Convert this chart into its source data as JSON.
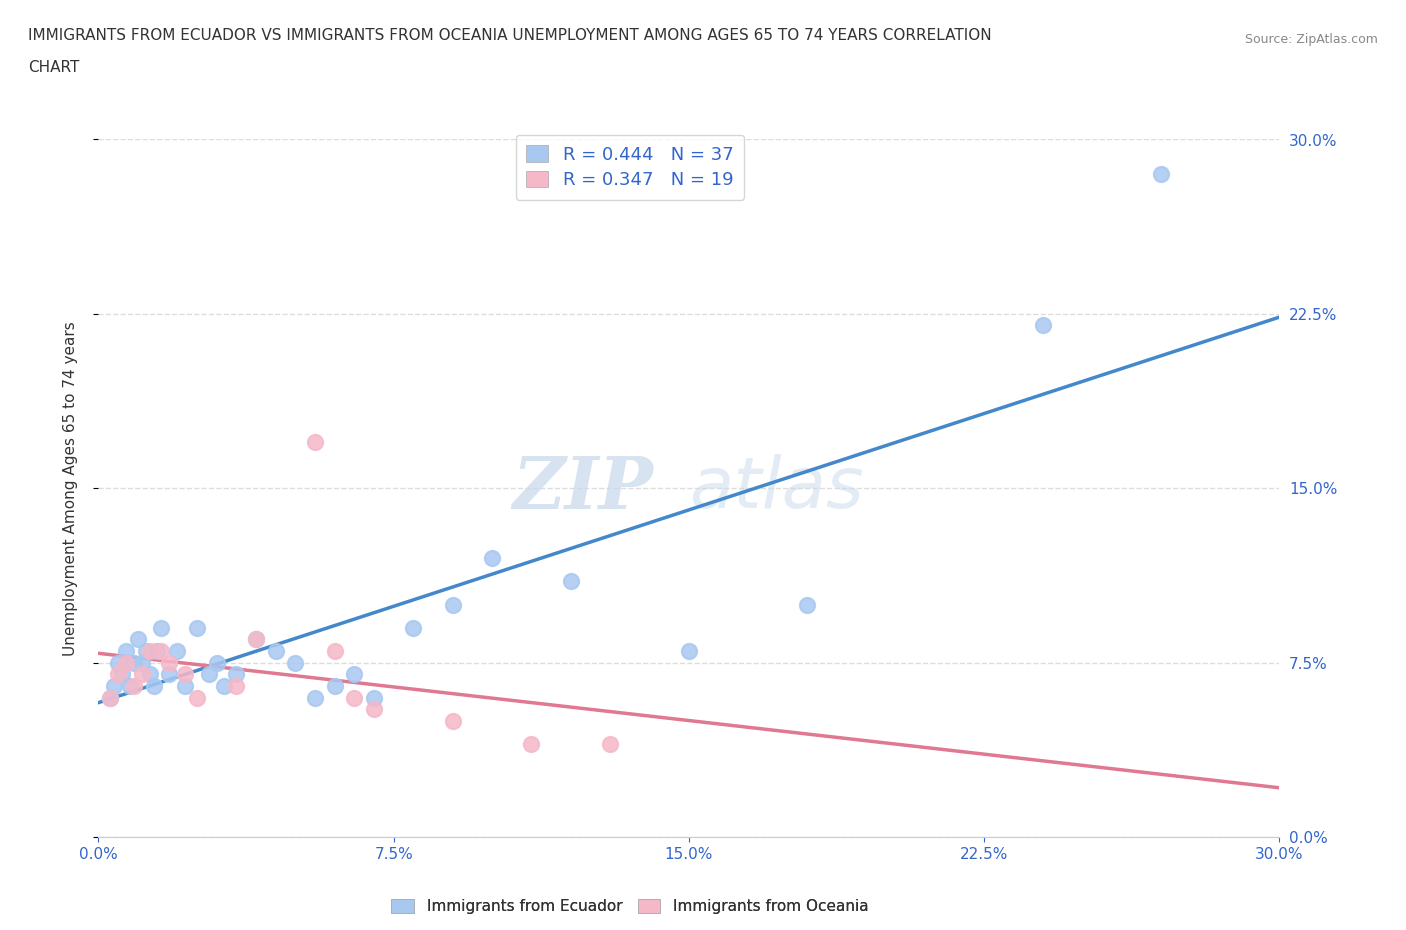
{
  "title_line1": "IMMIGRANTS FROM ECUADOR VS IMMIGRANTS FROM OCEANIA UNEMPLOYMENT AMONG AGES 65 TO 74 YEARS CORRELATION",
  "title_line2": "CHART",
  "source": "Source: ZipAtlas.com",
  "ylabel": "Unemployment Among Ages 65 to 74 years",
  "xlim": [
    0.0,
    0.3
  ],
  "ylim": [
    0.0,
    0.3
  ],
  "tick_vals": [
    0.0,
    0.075,
    0.15,
    0.225,
    0.3
  ],
  "tick_labels": [
    "0.0%",
    "7.5%",
    "15.0%",
    "22.5%",
    "30.0%"
  ],
  "blue_fill": "#a8c8f0",
  "pink_fill": "#f5b8c8",
  "blue_line": "#4488cc",
  "pink_line": "#e07890",
  "dashed_line": "#e0a0b0",
  "axis_label_color": "#3366cc",
  "text_color": "#333333",
  "grid_color": "#dddddd",
  "R_blue": 0.444,
  "N_blue": 37,
  "R_pink": 0.347,
  "N_pink": 19,
  "legend_label_blue": "Immigrants from Ecuador",
  "legend_label_pink": "Immigrants from Oceania",
  "watermark_zip": "ZIP",
  "watermark_atlas": "atlas",
  "blue_scatter_x": [
    0.003,
    0.004,
    0.005,
    0.006,
    0.007,
    0.008,
    0.009,
    0.01,
    0.011,
    0.012,
    0.013,
    0.014,
    0.015,
    0.016,
    0.018,
    0.02,
    0.022,
    0.025,
    0.028,
    0.03,
    0.032,
    0.035,
    0.04,
    0.045,
    0.05,
    0.055,
    0.06,
    0.065,
    0.07,
    0.08,
    0.09,
    0.1,
    0.12,
    0.15,
    0.18,
    0.24,
    0.27
  ],
  "blue_scatter_y": [
    0.06,
    0.065,
    0.075,
    0.07,
    0.08,
    0.065,
    0.075,
    0.085,
    0.075,
    0.08,
    0.07,
    0.065,
    0.08,
    0.09,
    0.07,
    0.08,
    0.065,
    0.09,
    0.07,
    0.075,
    0.065,
    0.07,
    0.085,
    0.08,
    0.075,
    0.06,
    0.065,
    0.07,
    0.06,
    0.09,
    0.1,
    0.12,
    0.11,
    0.08,
    0.1,
    0.22,
    0.285
  ],
  "pink_scatter_x": [
    0.003,
    0.005,
    0.007,
    0.009,
    0.011,
    0.013,
    0.016,
    0.018,
    0.022,
    0.025,
    0.035,
    0.04,
    0.055,
    0.06,
    0.065,
    0.07,
    0.09,
    0.11,
    0.13
  ],
  "pink_scatter_y": [
    0.06,
    0.07,
    0.075,
    0.065,
    0.07,
    0.08,
    0.08,
    0.075,
    0.07,
    0.06,
    0.065,
    0.085,
    0.17,
    0.08,
    0.06,
    0.055,
    0.05,
    0.04,
    0.04
  ]
}
